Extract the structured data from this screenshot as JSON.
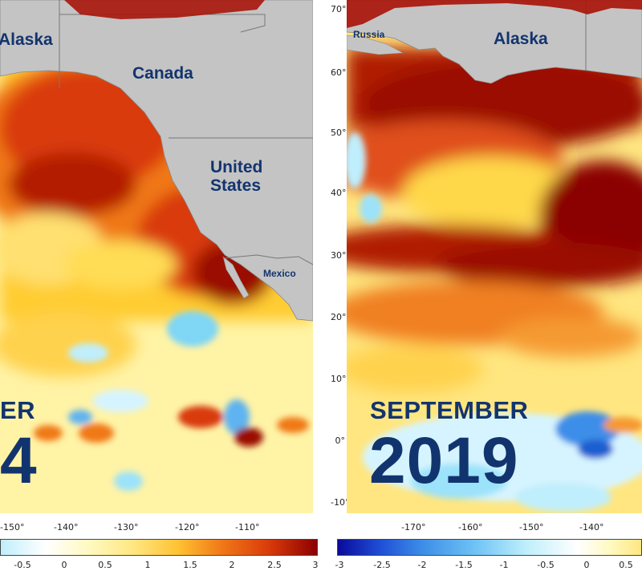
{
  "left_panel": {
    "labels": {
      "alaska": "Alaska",
      "canada": "Canada",
      "us_line1": "United",
      "us_line2": "States",
      "mexico": "Mexico"
    },
    "date": {
      "month": "ER",
      "year": "4"
    },
    "x_ticks": [
      "-150°",
      "-140°",
      "-130°",
      "-120°",
      "-110°"
    ]
  },
  "right_panel": {
    "labels": {
      "russia": "Russia",
      "alaska": "Alaska"
    },
    "date": {
      "month": "SEPTEMBER",
      "year": "2019"
    },
    "x_ticks": [
      "-170°",
      "-160°",
      "-150°",
      "-140°"
    ],
    "y_ticks": [
      "70°",
      "60°",
      "50°",
      "40°",
      "30°",
      "20°",
      "10°",
      "0°",
      "-10°"
    ]
  },
  "colorbar_left": {
    "ticks": [
      "-0.5",
      "0",
      "0.5",
      "1",
      "1.5",
      "2",
      "2.5",
      "3"
    ]
  },
  "colorbar_right": {
    "ticks": [
      "-3",
      "-2.5",
      "-2",
      "-1.5",
      "-1",
      "-0.5",
      "0",
      "0.5"
    ]
  },
  "colors": {
    "land": "#c4c4c4",
    "label_text": "#12346e",
    "anomaly_max": "#8b0000",
    "anomaly_min": "#0a0a9a"
  }
}
